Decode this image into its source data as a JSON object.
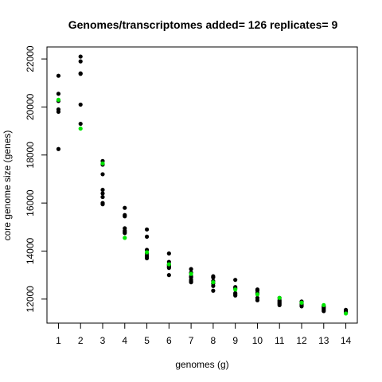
{
  "chart_data": {
    "type": "scatter",
    "title": "Genomes/transcriptomes added= 126  replicates= 9",
    "xlabel": "genomes (g)",
    "ylabel": "core genome size (genes)",
    "xlim": [
      0.48,
      14.52
    ],
    "ylim": [
      11000,
      22500
    ],
    "x_ticks": [
      1,
      2,
      3,
      4,
      5,
      6,
      7,
      8,
      9,
      10,
      11,
      12,
      13,
      14
    ],
    "y_ticks": [
      12000,
      14000,
      16000,
      18000,
      20000,
      22000
    ],
    "grid": false,
    "series": [
      {
        "color": "#000000",
        "points": [
          [
            1,
            21300
          ],
          [
            1,
            20550
          ],
          [
            1,
            20250
          ],
          [
            1,
            19900
          ],
          [
            1,
            19800
          ],
          [
            1,
            18250
          ],
          [
            2,
            22100
          ],
          [
            2,
            21900
          ],
          [
            2,
            21400
          ],
          [
            2,
            21380
          ],
          [
            2,
            20100
          ],
          [
            2,
            19300
          ],
          [
            3,
            17750
          ],
          [
            3,
            17600
          ],
          [
            3,
            17200
          ],
          [
            3,
            16550
          ],
          [
            3,
            16400
          ],
          [
            3,
            16250
          ],
          [
            3,
            16000
          ],
          [
            3,
            15950
          ],
          [
            4,
            15800
          ],
          [
            4,
            15500
          ],
          [
            4,
            15450
          ],
          [
            4,
            14950
          ],
          [
            4,
            14850
          ],
          [
            4,
            14800
          ],
          [
            4,
            14750
          ],
          [
            5,
            14900
          ],
          [
            5,
            14600
          ],
          [
            5,
            14050
          ],
          [
            5,
            13900
          ],
          [
            5,
            13800
          ],
          [
            5,
            13750
          ],
          [
            5,
            13700
          ],
          [
            6,
            13900
          ],
          [
            6,
            13550
          ],
          [
            6,
            13450
          ],
          [
            6,
            13400
          ],
          [
            6,
            13350
          ],
          [
            6,
            13300
          ],
          [
            6,
            13000
          ],
          [
            7,
            13250
          ],
          [
            7,
            13100
          ],
          [
            7,
            12950
          ],
          [
            7,
            12900
          ],
          [
            7,
            12800
          ],
          [
            7,
            12750
          ],
          [
            7,
            12700
          ],
          [
            8,
            12950
          ],
          [
            8,
            12900
          ],
          [
            8,
            12750
          ],
          [
            8,
            12650
          ],
          [
            8,
            12550
          ],
          [
            8,
            12350
          ],
          [
            9,
            12800
          ],
          [
            9,
            12500
          ],
          [
            9,
            12450
          ],
          [
            9,
            12250
          ],
          [
            9,
            12200
          ],
          [
            9,
            12150
          ],
          [
            10,
            12400
          ],
          [
            10,
            12350
          ],
          [
            10,
            12250
          ],
          [
            10,
            12200
          ],
          [
            10,
            12050
          ],
          [
            10,
            11950
          ],
          [
            11,
            12050
          ],
          [
            11,
            11950
          ],
          [
            11,
            11900
          ],
          [
            11,
            11850
          ],
          [
            11,
            11800
          ],
          [
            11,
            11750
          ],
          [
            12,
            11900
          ],
          [
            12,
            11850
          ],
          [
            12,
            11800
          ],
          [
            12,
            11750
          ],
          [
            12,
            11700
          ],
          [
            13,
            11700
          ],
          [
            13,
            11650
          ],
          [
            13,
            11600
          ],
          [
            13,
            11550
          ],
          [
            13,
            11500
          ],
          [
            14,
            11550
          ],
          [
            14,
            11500
          ],
          [
            14,
            11450
          ],
          [
            14,
            11420
          ]
        ]
      },
      {
        "color": "#00e600",
        "points": [
          [
            1,
            20300
          ],
          [
            2,
            19100
          ],
          [
            3,
            17650
          ],
          [
            4,
            14550
          ],
          [
            5,
            13950
          ],
          [
            6,
            13450
          ],
          [
            7,
            13050
          ],
          [
            8,
            12700
          ],
          [
            9,
            12400
          ],
          [
            10,
            12200
          ],
          [
            11,
            12050
          ],
          [
            12,
            11850
          ],
          [
            13,
            11750
          ],
          [
            14,
            11400
          ]
        ]
      }
    ]
  }
}
